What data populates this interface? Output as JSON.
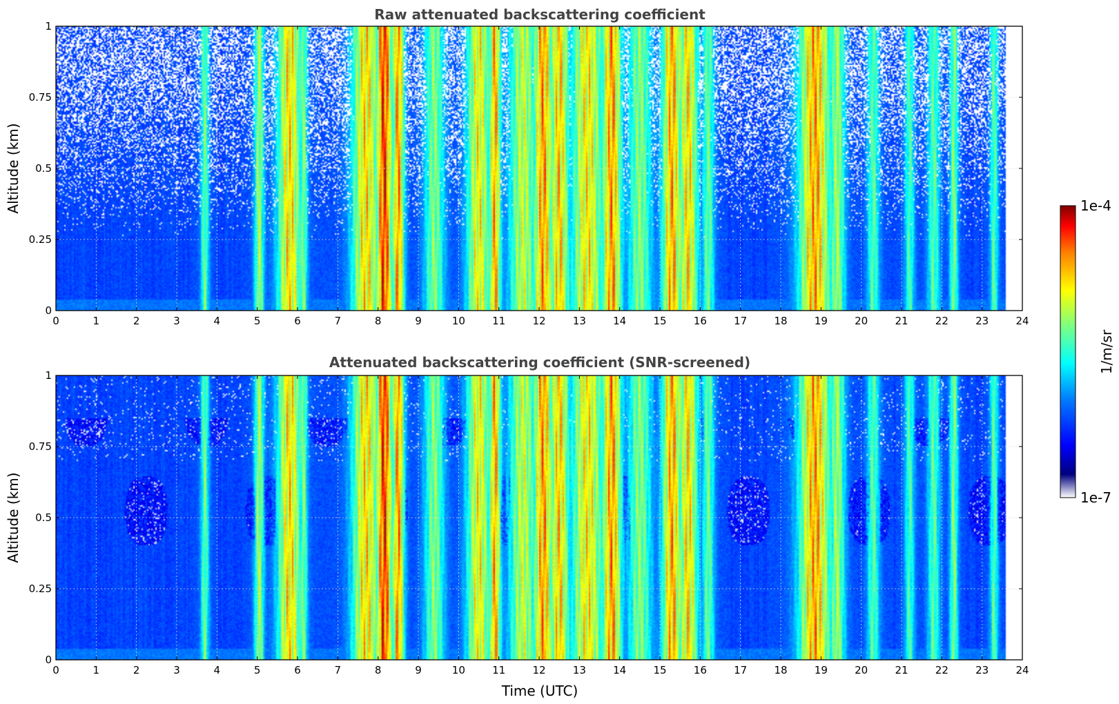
{
  "chart_data": [
    {
      "type": "heatmap",
      "title": "Raw attenuated backscattering coefficient",
      "xlabel": "",
      "ylabel": "Altitude (km)",
      "xlim": [
        0,
        24
      ],
      "ylim": [
        0,
        1
      ],
      "x_ticks": [
        "0",
        "1",
        "2",
        "3",
        "4",
        "5",
        "6",
        "7",
        "8",
        "9",
        "10",
        "11",
        "12",
        "13",
        "14",
        "15",
        "16",
        "17",
        "18",
        "19",
        "20",
        "21",
        "22",
        "23",
        "24"
      ],
      "y_ticks": [
        "0",
        "0.25",
        "0.5",
        "0.75",
        "1"
      ],
      "grid": true,
      "data_end_time": 23.6,
      "screened": false,
      "cloud_events": [
        {
          "time": 3.7,
          "width": 0.1,
          "intensity": 0.52,
          "top": 1.0
        },
        {
          "time": 5.05,
          "width": 0.12,
          "intensity": 0.58,
          "top": 1.0
        },
        {
          "time": 5.8,
          "width": 0.3,
          "intensity": 0.72,
          "top": 1.0
        },
        {
          "time": 6.15,
          "width": 0.1,
          "intensity": 0.55,
          "top": 1.0
        },
        {
          "time": 7.7,
          "width": 0.35,
          "intensity": 0.72,
          "top": 1.0
        },
        {
          "time": 8.15,
          "width": 0.2,
          "intensity": 0.92,
          "top": 1.0
        },
        {
          "time": 8.5,
          "width": 0.15,
          "intensity": 0.8,
          "top": 1.0
        },
        {
          "time": 9.4,
          "width": 0.25,
          "intensity": 0.55,
          "top": 1.0
        },
        {
          "time": 10.5,
          "width": 0.3,
          "intensity": 0.68,
          "top": 1.0
        },
        {
          "time": 10.9,
          "width": 0.15,
          "intensity": 0.78,
          "top": 1.0
        },
        {
          "time": 11.6,
          "width": 0.35,
          "intensity": 0.62,
          "top": 1.0
        },
        {
          "time": 12.1,
          "width": 0.25,
          "intensity": 0.8,
          "top": 1.0
        },
        {
          "time": 12.5,
          "width": 0.25,
          "intensity": 0.74,
          "top": 1.0
        },
        {
          "time": 13.2,
          "width": 0.4,
          "intensity": 0.7,
          "top": 1.0
        },
        {
          "time": 13.8,
          "width": 0.25,
          "intensity": 0.8,
          "top": 1.0
        },
        {
          "time": 14.5,
          "width": 0.3,
          "intensity": 0.55,
          "top": 1.0
        },
        {
          "time": 15.3,
          "width": 0.25,
          "intensity": 0.78,
          "top": 1.0
        },
        {
          "time": 15.7,
          "width": 0.25,
          "intensity": 0.72,
          "top": 1.0
        },
        {
          "time": 16.2,
          "width": 0.15,
          "intensity": 0.52,
          "top": 1.0
        },
        {
          "time": 18.85,
          "width": 0.4,
          "intensity": 0.78,
          "top": 1.0
        },
        {
          "time": 19.4,
          "width": 0.2,
          "intensity": 0.58,
          "top": 1.0
        },
        {
          "time": 20.3,
          "width": 0.15,
          "intensity": 0.5,
          "top": 1.0
        },
        {
          "time": 21.2,
          "width": 0.12,
          "intensity": 0.48,
          "top": 1.0
        },
        {
          "time": 21.8,
          "width": 0.15,
          "intensity": 0.5,
          "top": 1.0
        },
        {
          "time": 22.3,
          "width": 0.1,
          "intensity": 0.55,
          "top": 1.0
        },
        {
          "time": 23.3,
          "width": 0.1,
          "intensity": 0.5,
          "top": 1.0
        }
      ]
    },
    {
      "type": "heatmap",
      "title": "Attenuated backscattering coefficient (SNR-screened)",
      "xlabel": "Time (UTC)",
      "ylabel": "Altitude (km)",
      "xlim": [
        0,
        24
      ],
      "ylim": [
        0,
        1
      ],
      "x_ticks": [
        "0",
        "1",
        "2",
        "3",
        "4",
        "5",
        "6",
        "7",
        "8",
        "9",
        "10",
        "11",
        "12",
        "13",
        "14",
        "15",
        "16",
        "17",
        "18",
        "19",
        "20",
        "21",
        "22",
        "23",
        "24"
      ],
      "y_ticks": [
        "0",
        "0.25",
        "0.5",
        "0.75",
        "1"
      ],
      "grid": true,
      "data_end_time": 23.6,
      "screened": true,
      "cloud_events": [
        {
          "time": 3.7,
          "width": 0.1,
          "intensity": 0.52,
          "top": 1.0
        },
        {
          "time": 5.05,
          "width": 0.12,
          "intensity": 0.58,
          "top": 1.0
        },
        {
          "time": 5.8,
          "width": 0.3,
          "intensity": 0.72,
          "top": 1.0
        },
        {
          "time": 6.15,
          "width": 0.1,
          "intensity": 0.55,
          "top": 1.0
        },
        {
          "time": 7.7,
          "width": 0.35,
          "intensity": 0.72,
          "top": 1.0
        },
        {
          "time": 8.15,
          "width": 0.2,
          "intensity": 0.92,
          "top": 1.0
        },
        {
          "time": 8.5,
          "width": 0.15,
          "intensity": 0.8,
          "top": 1.0
        },
        {
          "time": 9.4,
          "width": 0.25,
          "intensity": 0.55,
          "top": 1.0
        },
        {
          "time": 10.5,
          "width": 0.3,
          "intensity": 0.68,
          "top": 1.0
        },
        {
          "time": 10.9,
          "width": 0.15,
          "intensity": 0.78,
          "top": 1.0
        },
        {
          "time": 11.6,
          "width": 0.35,
          "intensity": 0.62,
          "top": 1.0
        },
        {
          "time": 12.1,
          "width": 0.25,
          "intensity": 0.8,
          "top": 1.0
        },
        {
          "time": 12.5,
          "width": 0.25,
          "intensity": 0.74,
          "top": 1.0
        },
        {
          "time": 13.2,
          "width": 0.4,
          "intensity": 0.7,
          "top": 1.0
        },
        {
          "time": 13.8,
          "width": 0.25,
          "intensity": 0.8,
          "top": 1.0
        },
        {
          "time": 14.5,
          "width": 0.3,
          "intensity": 0.55,
          "top": 1.0
        },
        {
          "time": 15.3,
          "width": 0.25,
          "intensity": 0.78,
          "top": 1.0
        },
        {
          "time": 15.7,
          "width": 0.25,
          "intensity": 0.72,
          "top": 1.0
        },
        {
          "time": 16.2,
          "width": 0.15,
          "intensity": 0.52,
          "top": 1.0
        },
        {
          "time": 18.85,
          "width": 0.4,
          "intensity": 0.78,
          "top": 1.0
        },
        {
          "time": 19.4,
          "width": 0.2,
          "intensity": 0.58,
          "top": 1.0
        },
        {
          "time": 20.3,
          "width": 0.15,
          "intensity": 0.5,
          "top": 1.0
        },
        {
          "time": 21.2,
          "width": 0.12,
          "intensity": 0.48,
          "top": 1.0
        },
        {
          "time": 21.8,
          "width": 0.15,
          "intensity": 0.5,
          "top": 1.0
        },
        {
          "time": 22.3,
          "width": 0.1,
          "intensity": 0.55,
          "top": 1.0
        },
        {
          "time": 23.3,
          "width": 0.1,
          "intensity": 0.5,
          "top": 1.0
        }
      ]
    }
  ],
  "colorbar": {
    "label": "1/m/sr",
    "max_label": "1e-4",
    "min_label": "1e-7",
    "scale": "log",
    "colormap": "jet"
  }
}
